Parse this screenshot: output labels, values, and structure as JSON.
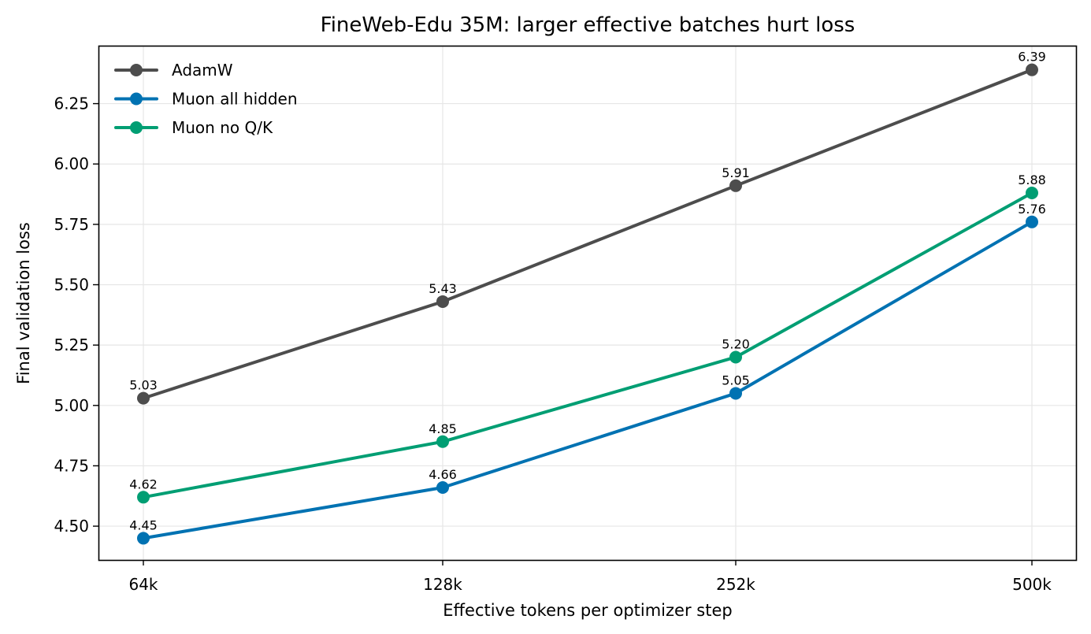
{
  "chart_data": {
    "type": "line",
    "title": "FineWeb-Edu 35M: larger effective batches hurt loss",
    "xlabel": "Effective tokens per optimizer step",
    "ylabel": "Final validation loss",
    "categories": [
      "64k",
      "128k",
      "252k",
      "500k"
    ],
    "ylim": [
      4.36,
      6.49
    ],
    "yticks": [
      4.5,
      4.75,
      5.0,
      5.25,
      5.5,
      5.75,
      6.0,
      6.25
    ],
    "ytick_labels": [
      "4.50",
      "4.75",
      "5.00",
      "5.25",
      "5.50",
      "5.75",
      "6.00",
      "6.25"
    ],
    "grid": true,
    "legend_position": "upper-left",
    "series": [
      {
        "name": "AdamW",
        "color": "#4d4d4d",
        "values": [
          5.03,
          5.43,
          5.91,
          6.39
        ],
        "labels": [
          "5.03",
          "5.43",
          "5.91",
          "6.39"
        ]
      },
      {
        "name": "Muon all hidden",
        "color": "#0072b2",
        "values": [
          4.45,
          4.66,
          5.05,
          5.76
        ],
        "labels": [
          "4.45",
          "4.66",
          "5.05",
          "5.76"
        ]
      },
      {
        "name": "Muon no Q/K",
        "color": "#009e73",
        "values": [
          4.62,
          4.85,
          5.2,
          5.88
        ],
        "labels": [
          "4.62",
          "4.85",
          "5.20",
          "5.88"
        ]
      }
    ]
  }
}
